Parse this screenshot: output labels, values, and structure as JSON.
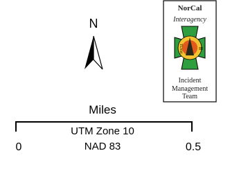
{
  "north_arrow": {
    "label": "N"
  },
  "logo": {
    "title": "NorCal",
    "subtitle": "Interagency",
    "left_badge": "TEAM",
    "right_badge": "III",
    "footer": [
      "Incident",
      "Management",
      "Team"
    ]
  },
  "scale_bar": {
    "unit": "Miles",
    "start_label": "0",
    "end_label": "0.5",
    "projection": [
      "UTM Zone 10",
      "NAD 83"
    ]
  }
}
